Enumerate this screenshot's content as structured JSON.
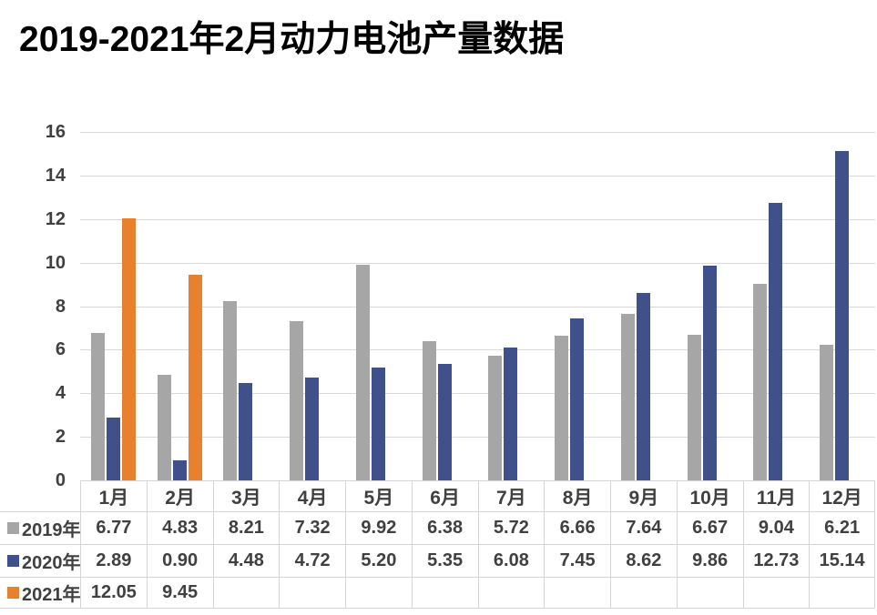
{
  "title": "2019-2021年2月动力电池产量数据",
  "chart_data": {
    "type": "bar",
    "title": "2019-2021年2月动力电池产量数据",
    "categories": [
      "1月",
      "2月",
      "3月",
      "4月",
      "5月",
      "6月",
      "7月",
      "8月",
      "9月",
      "10月",
      "11月",
      "12月"
    ],
    "series": [
      {
        "name": "2019年",
        "color": "#A6A6A6",
        "values": [
          6.77,
          4.83,
          8.21,
          7.32,
          9.92,
          6.38,
          5.72,
          6.66,
          7.64,
          6.67,
          9.04,
          6.21
        ]
      },
      {
        "name": "2020年",
        "color": "#40508A",
        "values": [
          2.89,
          0.9,
          4.48,
          4.72,
          5.2,
          5.35,
          6.08,
          7.45,
          8.62,
          9.86,
          12.73,
          15.14
        ]
      },
      {
        "name": "2021年",
        "color": "#E8812D",
        "values": [
          12.05,
          9.45,
          null,
          null,
          null,
          null,
          null,
          null,
          null,
          null,
          null,
          null
        ]
      }
    ],
    "xlabel": "",
    "ylabel": "",
    "ylim": [
      0,
      16
    ],
    "ytick_step": 2,
    "ytick_labels": [
      "0",
      "2",
      "4",
      "6",
      "8",
      "10",
      "12",
      "14",
      "16"
    ],
    "grid": true,
    "gridline_color": "#D9D9D9",
    "axis_text_color": "#404040",
    "table_border_color": "#D4D4D4",
    "legend_position": "data-table-left",
    "value_decimals": 2
  }
}
